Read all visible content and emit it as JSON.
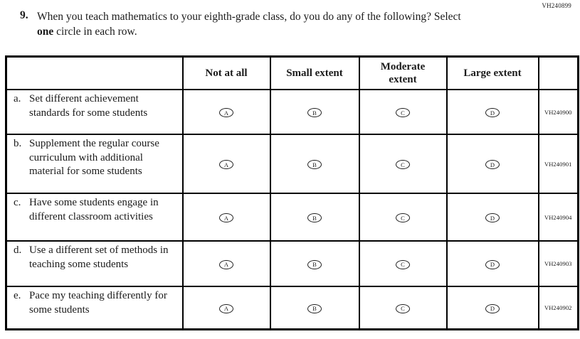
{
  "page_code": "VH240899",
  "colors": {
    "ink": "#1b1b1b",
    "border": "#000000",
    "background": "#ffffff"
  },
  "question": {
    "number": "9.",
    "text_before_bold": "When you teach mathematics to your eighth-grade class, do you do any of the following? Select ",
    "bold_word": "one",
    "text_after_bold": " circle in each row."
  },
  "table": {
    "columns": [
      "Not at all",
      "Small extent",
      "Moderate extent",
      "Large extent"
    ],
    "options": [
      "A",
      "B",
      "C",
      "D"
    ],
    "rows": [
      {
        "letter": "a.",
        "text": "Set different achievement standards for some students",
        "code": "VH240900"
      },
      {
        "letter": "b.",
        "text": "Supplement the regular course curriculum with additional material for some students",
        "code": "VH240901"
      },
      {
        "letter": "c.",
        "text": "Have some students engage in different classroom activities",
        "code": "VH240904"
      },
      {
        "letter": "d.",
        "text": "Use a different set of methods in teaching some students",
        "code": "VH240903"
      },
      {
        "letter": "e.",
        "text": "Pace my teaching differently for some students",
        "code": "VH240902"
      }
    ]
  }
}
